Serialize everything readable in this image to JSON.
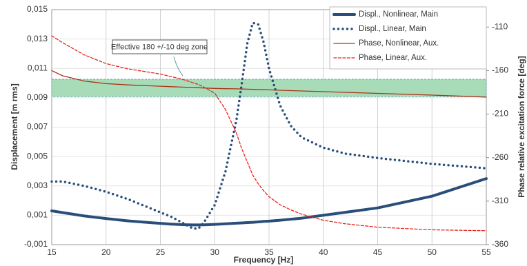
{
  "chart_data": {
    "type": "line",
    "xlabel": "Frequency [Hz]",
    "ylabel": "Displacement [m rms]",
    "y2label": "Phase relative excitation force [deg]",
    "x": [
      15,
      16,
      18,
      20,
      22,
      24,
      25,
      26,
      27,
      28,
      28.5,
      29,
      30,
      31,
      32,
      32.5,
      33,
      33.5,
      34,
      34.5,
      35,
      36,
      37,
      38,
      40,
      42,
      45,
      50,
      55
    ],
    "xlim": [
      15,
      55
    ],
    "xticks": [
      15,
      20,
      25,
      30,
      35,
      40,
      45,
      50,
      55
    ],
    "ylim": [
      -0.001,
      0.015
    ],
    "yticks": [
      {
        "value": -0.001,
        "label": "-0,001"
      },
      {
        "value": 0.001,
        "label": "0,001"
      },
      {
        "value": 0.003,
        "label": "0,003"
      },
      {
        "value": 0.005,
        "label": "0,005"
      },
      {
        "value": 0.007,
        "label": "0,007"
      },
      {
        "value": 0.009,
        "label": "0,009"
      },
      {
        "value": 0.011,
        "label": "0,011"
      },
      {
        "value": 0.013,
        "label": "0,013"
      },
      {
        "value": 0.015,
        "label": "0,015"
      }
    ],
    "y2lim": [
      -360,
      -90
    ],
    "y2ticks": [
      -360,
      -310,
      -260,
      -210,
      -160,
      -110
    ],
    "grid": true,
    "legend": "upper right",
    "annotation": {
      "text": "Effective 180 +/-10 deg zone",
      "y2range": [
        -190,
        -170
      ],
      "color": "#a8dcb8"
    },
    "series": [
      {
        "name": "Displ., Nonlinear, Main",
        "color": "#2a4e7a",
        "line_style": "solid",
        "line_width": 4,
        "axis": "y",
        "values": [
          0.0013,
          0.00118,
          0.00095,
          0.00078,
          0.00062,
          0.0005,
          0.00045,
          0.0004,
          0.00036,
          0.00034,
          0.00034,
          0.00035,
          0.00038,
          0.00042,
          0.00046,
          0.00048,
          0.0005,
          0.00052,
          0.00055,
          0.00058,
          0.0006,
          0.00066,
          0.00073,
          0.0008,
          0.001,
          0.0012,
          0.0015,
          0.0023,
          0.0035
        ]
      },
      {
        "name": "Displ., Linear, Main",
        "color": "#2a4e7a",
        "line_style": "dotted",
        "line_width": 3.5,
        "axis": "y",
        "values": [
          0.0033,
          0.0033,
          0.003,
          0.0026,
          0.0021,
          0.0015,
          0.0012,
          0.0009,
          0.0005,
          0.0001,
          0.0001,
          0.0005,
          0.0017,
          0.004,
          0.0075,
          0.01,
          0.0127,
          0.0141,
          0.014,
          0.0128,
          0.011,
          0.0085,
          0.0071,
          0.0063,
          0.0056,
          0.0052,
          0.0049,
          0.0045,
          0.0042
        ]
      },
      {
        "name": "Phase, Nonlinear, Aux.",
        "color": "#a83218",
        "line_style": "solid",
        "line_width": 1.3,
        "axis": "y2",
        "values": [
          -160,
          -166,
          -172,
          -175,
          -176.5,
          -177.5,
          -178,
          -178.5,
          -179,
          -179.5,
          -179.7,
          -180,
          -180.5,
          -180.8,
          -181,
          -181.2,
          -181.4,
          -181.6,
          -181.8,
          -182,
          -182.2,
          -182.6,
          -183,
          -183.4,
          -184.2,
          -185,
          -186.2,
          -188.2,
          -190.5
        ]
      },
      {
        "name": "Phase, Linear, Aux.",
        "color": "#e8231c",
        "line_style": "dashed",
        "line_width": 1.3,
        "axis": "y2",
        "values": [
          -120,
          -128,
          -142,
          -152,
          -158,
          -162,
          -164,
          -167,
          -170,
          -174,
          -176,
          -179,
          -186,
          -205,
          -232,
          -250,
          -265,
          -280,
          -290,
          -298,
          -305,
          -314,
          -320,
          -325,
          -332,
          -336,
          -340,
          -343,
          -344
        ]
      }
    ]
  }
}
